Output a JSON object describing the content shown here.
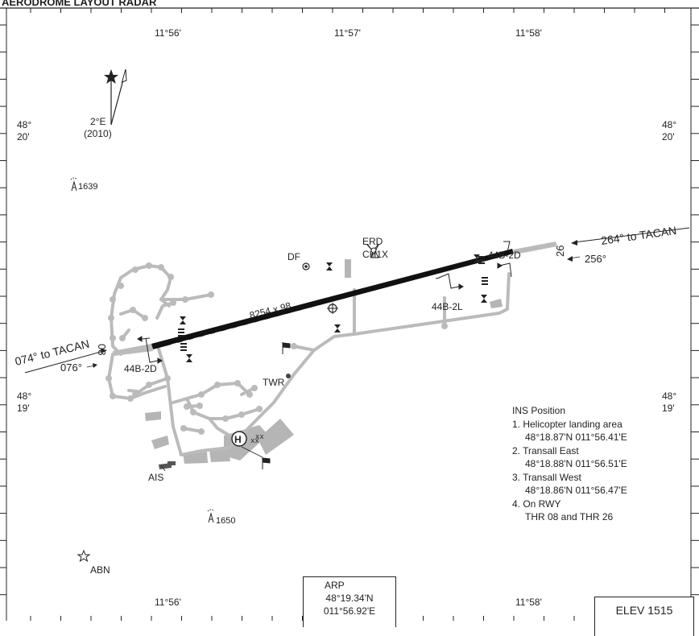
{
  "chart_title": "AERODROME LAYOUT RADAR",
  "longitude_labels": {
    "w": "11°56'",
    "c": "11°57'",
    "e": "11°58'"
  },
  "latitude_labels": {
    "n_deg": "48°",
    "n_min": "20'",
    "s_deg": "48°",
    "s_min": "19'"
  },
  "magvar": {
    "value": "2°E",
    "year": "(2010)"
  },
  "obstacles": {
    "north": "1639",
    "south": "1650"
  },
  "runway": {
    "dimensions": "8254 x 98",
    "west_designator": "08",
    "east_designator": "26",
    "west_label": "44B-2D",
    "east_label_top": "44B-2D",
    "east_label_bottom": "44B-2L"
  },
  "navaids": {
    "erd": "ERD",
    "erd_ident": "CH1X",
    "df": "DF",
    "twr": "TWR",
    "ais": "AIS",
    "abn": "ABN",
    "heli": "H"
  },
  "tacan": {
    "west": "074° to TACAN",
    "west_course": "076°",
    "east": "264° to TACAN",
    "east_course": "256°"
  },
  "ins": {
    "title": "INS Position",
    "items": [
      {
        "label": "1. Helicopter landing area",
        "coords": "48°18.87'N  011°56.41'E"
      },
      {
        "label": "2. Transall East",
        "coords": "48°18.88'N  011°56.51'E"
      },
      {
        "label": "3. Transall West",
        "coords": "48°18.86'N  011°56.47'E"
      },
      {
        "label": "4. On RWY",
        "coords": "THR 08 and THR 26"
      }
    ]
  },
  "arp": {
    "label": "ARP",
    "lat": "48°19.34'N",
    "lon": "011°56.92'E"
  },
  "elevation": "ELEV 1515"
}
